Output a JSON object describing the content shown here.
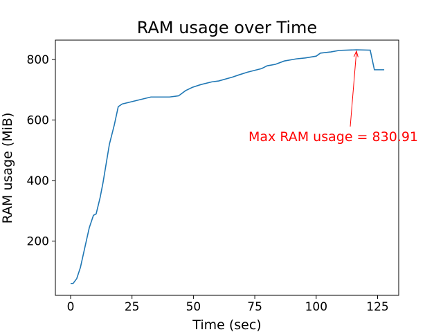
{
  "chart_data": {
    "type": "line",
    "title": "RAM usage over Time",
    "x_label": "Time (sec)",
    "y_label": "RAM usage (MiB)",
    "x": [
      0,
      1,
      2.5,
      4,
      6,
      7.6,
      9.3,
      10.4,
      12,
      13.2,
      15.8,
      17.8,
      19.4,
      21,
      32.7,
      40.3,
      44,
      46.8,
      49.6,
      53,
      57.5,
      60.3,
      66,
      68.5,
      72,
      77.8,
      80,
      83.4,
      87,
      91.9,
      95.5,
      100,
      101.7,
      106,
      109.4,
      116.4,
      122,
      123.7,
      127.7
    ],
    "series": [
      {
        "name": "RAM usage",
        "color": "#1f77b4",
        "values": [
          60,
          60,
          76,
          113,
          186,
          244,
          285,
          290,
          343,
          393,
          520,
          584,
          644,
          653,
          676,
          676,
          680,
          697,
          708,
          717,
          726,
          729,
          742,
          749,
          758,
          770,
          779,
          784,
          795,
          802,
          805,
          811,
          821,
          825,
          830,
          832,
          830.91,
          766,
          766
        ]
      }
    ],
    "annotation": "Max RAM usage = 830.91",
    "annotation_color": "#ff0000",
    "xlim": [
      -6.2,
      133.6
    ],
    "ylim": [
      20.7,
      864
    ],
    "xticks": [
      0,
      25,
      50,
      75,
      100,
      125
    ],
    "yticks": [
      200,
      400,
      600,
      800
    ]
  }
}
